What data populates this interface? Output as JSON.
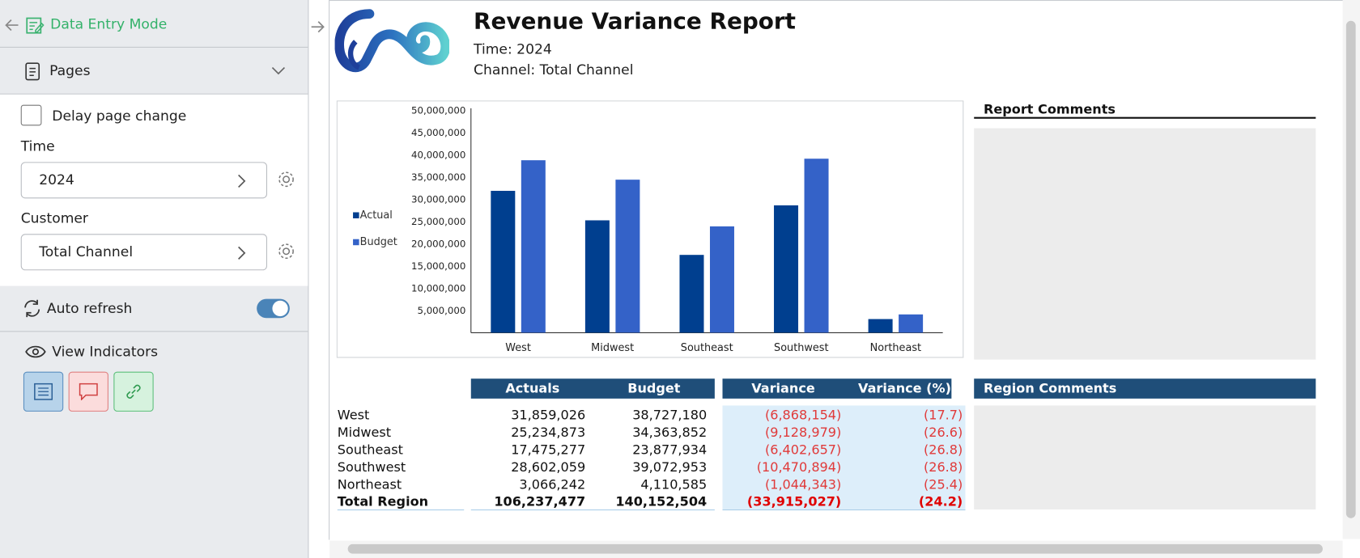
{
  "sidebar": {
    "title": "Data Entry Mode",
    "pages": "Pages",
    "delay": "Delay page change",
    "time_label": "Time",
    "time_value": "2024",
    "customer_label": "Customer",
    "customer_value": "Total Channel",
    "auto_refresh": "Auto refresh",
    "view_indicators": "View Indicators"
  },
  "report": {
    "title": "Revenue Variance Report",
    "time": "Time: 2024",
    "channel": "Channel: Total Channel",
    "report_comments": "Report Comments",
    "region_comments": "Region Comments"
  },
  "table": {
    "columns": [
      "Actuals",
      "Budget",
      "Variance",
      "Variance (%)"
    ],
    "rows": [
      [
        "West",
        "31,859,026",
        "38,727,180",
        "(6,868,154)",
        "(17.7)"
      ],
      [
        "Midwest",
        "25,234,873",
        "34,363,852",
        "(9,128,979)",
        "(26.6)"
      ],
      [
        "Southeast",
        "17,475,277",
        "23,877,934",
        "(6,402,657)",
        "(26.8)"
      ],
      [
        "Southwest",
        "28,602,059",
        "39,072,953",
        "(10,470,894)",
        "(26.8)"
      ],
      [
        "Northeast",
        "3,066,242",
        "4,110,585",
        "(1,044,343)",
        "(25.4)"
      ],
      [
        "Total Region",
        "106,237,477",
        "140,152,504",
        "(33,915,027)",
        "(24.2)"
      ]
    ]
  },
  "chart_data": {
    "type": "bar",
    "categories": [
      "West",
      "Midwest",
      "Southeast",
      "Southwest",
      "Northeast"
    ],
    "series": [
      {
        "name": "Actual",
        "color": "#003f8f",
        "values": [
          31859026,
          25234873,
          17475277,
          28602059,
          3066242
        ]
      },
      {
        "name": "Budget",
        "color": "#3462c8",
        "values": [
          38727180,
          34363852,
          23877934,
          39072953,
          4110585
        ]
      }
    ],
    "ylim": [
      0,
      50000000
    ],
    "yticks": [
      {
        "value": 5000000,
        "label": "5,000,000"
      },
      {
        "value": 10000000,
        "label": "10,000,000"
      },
      {
        "value": 15000000,
        "label": "15,000,000"
      },
      {
        "value": 20000000,
        "label": "20,000,000"
      },
      {
        "value": 25000000,
        "label": "25,000,000"
      },
      {
        "value": 30000000,
        "label": "30,000,000"
      },
      {
        "value": 35000000,
        "label": "35,000,000"
      },
      {
        "value": 40000000,
        "label": "40,000,000"
      },
      {
        "value": 45000000,
        "label": "45,000,000"
      },
      {
        "value": 50000000,
        "label": "50,000,000"
      }
    ],
    "legend": "left"
  }
}
